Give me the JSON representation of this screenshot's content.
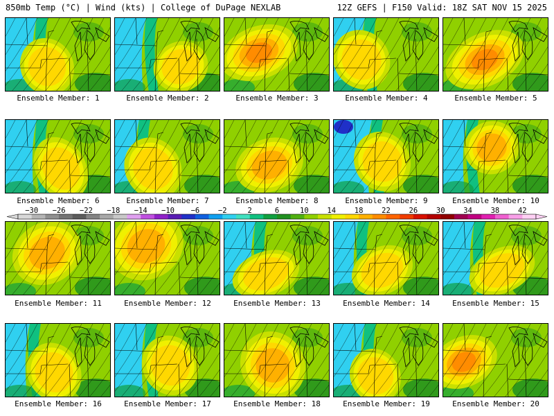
{
  "header": {
    "left": "850mb Temp (°C) | Wind (kts) | College of DuPage NEXLAB",
    "right": "12Z GEFS | F150 Valid: 18Z SAT NOV 15 2025"
  },
  "members": [
    "Ensemble Member: 1",
    "Ensemble Member: 2",
    "Ensemble Member: 3",
    "Ensemble Member: 4",
    "Ensemble Member: 5",
    "Ensemble Member: 6",
    "Ensemble Member: 7",
    "Ensemble Member: 8",
    "Ensemble Member: 9",
    "Ensemble Member: 10",
    "Ensemble Member: 11",
    "Ensemble Member: 12",
    "Ensemble Member: 13",
    "Ensemble Member: 14",
    "Ensemble Member: 15",
    "Ensemble Member: 16",
    "Ensemble Member: 17",
    "Ensemble Member: 18",
    "Ensemble Member: 19",
    "Ensemble Member: 20"
  ],
  "colorbar": {
    "labels": [
      "−30",
      "−26",
      "−22",
      "−18",
      "−14",
      "−10",
      "−6",
      "−2",
      "2",
      "6",
      "10",
      "14",
      "18",
      "22",
      "26",
      "30",
      "34",
      "38",
      "42"
    ],
    "colors": [
      "#d8d8d8",
      "#b4b4b4",
      "#909090",
      "#747474",
      "#5c5c5c",
      "#848484",
      "#a8a8a8",
      "#c8c8c8",
      "#e0a0f0",
      "#c050e0",
      "#9020c8",
      "#5a1cb4",
      "#2030c8",
      "#1060e0",
      "#10a0f0",
      "#30d0f0",
      "#40e0c0",
      "#10c080",
      "#10a040",
      "#209020",
      "#50b010",
      "#90d000",
      "#c8e000",
      "#f0f000",
      "#ffd800",
      "#ffb000",
      "#ff8c00",
      "#ff6400",
      "#f03c00",
      "#d81000",
      "#b40000",
      "#900000",
      "#a00050",
      "#c00080",
      "#e020b0",
      "#f060d0",
      "#f8a0e8",
      "#ffd0f4"
    ]
  }
}
